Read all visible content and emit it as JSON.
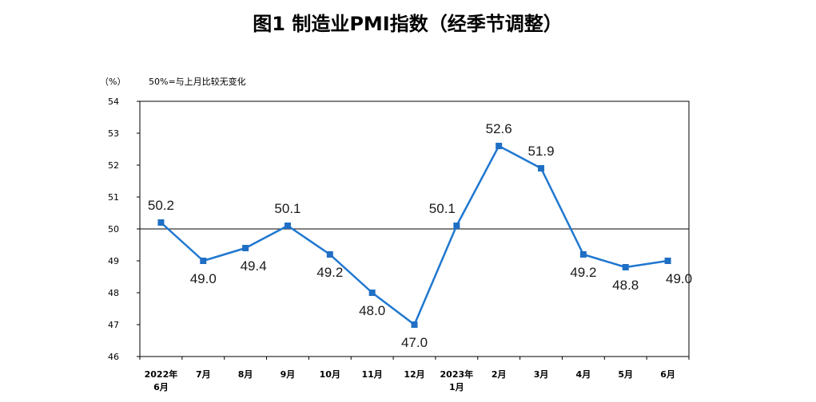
{
  "chart_data": {
    "type": "line",
    "title": "图1 制造业PMI指数（经季节调整）",
    "unit_label": "（%）",
    "note": "50%=与上月比较无变化",
    "categories": [
      [
        "2022年",
        "6月"
      ],
      [
        "7月"
      ],
      [
        "8月"
      ],
      [
        "9月"
      ],
      [
        "10月"
      ],
      [
        "11月"
      ],
      [
        "12月"
      ],
      [
        "2023年",
        "1月"
      ],
      [
        "2月"
      ],
      [
        "3月"
      ],
      [
        "4月"
      ],
      [
        "5月"
      ],
      [
        "6月"
      ]
    ],
    "series": [
      {
        "values": [
          50.2,
          49.0,
          49.4,
          50.1,
          49.2,
          48.0,
          47.0,
          50.1,
          52.6,
          51.9,
          49.2,
          48.8,
          49.0
        ]
      }
    ],
    "data_labels": [
      "50.2",
      "49.0",
      "49.4",
      "50.1",
      "49.2",
      "48.0",
      "47.0",
      "50.1",
      "52.6",
      "51.9",
      "49.2",
      "48.8",
      "49.0"
    ],
    "yticks": [
      "46",
      "47",
      "48",
      "49",
      "50",
      "51",
      "52",
      "53",
      "54"
    ],
    "ylim": [
      46,
      54
    ],
    "reference_line": 50,
    "line_color": "#1f77d0",
    "marker_color": "#1f6fc4",
    "grid": false
  }
}
